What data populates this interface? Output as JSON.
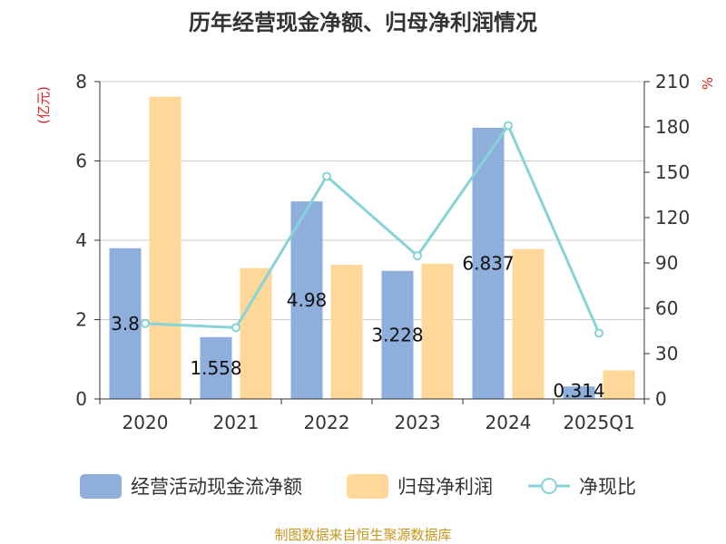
{
  "chart_data": {
    "type": "bar",
    "title": "历年经营现金净额、归母净利润情况",
    "categories": [
      "2020",
      "2021",
      "2022",
      "2023",
      "2024",
      "2025Q1"
    ],
    "series": [
      {
        "name": "经营活动现金流净额",
        "kind": "bar",
        "axis": "left",
        "color": "#8eaedc",
        "values": [
          3.8,
          1.558,
          4.98,
          3.228,
          6.837,
          0.314
        ],
        "labels": [
          "3.8",
          "1.558",
          "4.98",
          "3.228",
          "6.837",
          "0.314"
        ]
      },
      {
        "name": "归母净利润",
        "kind": "bar",
        "axis": "left",
        "color": "#ffd798",
        "values": [
          7.62,
          3.3,
          3.38,
          3.41,
          3.78,
          0.72
        ]
      },
      {
        "name": "净现比",
        "kind": "line",
        "axis": "right",
        "color": "#86d3d8",
        "values": [
          49.9,
          47.2,
          147.3,
          94.7,
          180.9,
          43.6
        ]
      }
    ],
    "ylabel_left": "(亿元)",
    "ylabel_right": "%",
    "ylim_left": [
      0,
      8
    ],
    "yticks_left": [
      "0",
      "2",
      "4",
      "6",
      "8"
    ],
    "ylim_right": [
      0,
      210
    ],
    "yticks_right": [
      "0",
      "30",
      "60",
      "90",
      "120",
      "150",
      "180",
      "210"
    ],
    "grid": true,
    "legend_position": "bottom"
  },
  "source": "制图数据来自恒生聚源数据库"
}
